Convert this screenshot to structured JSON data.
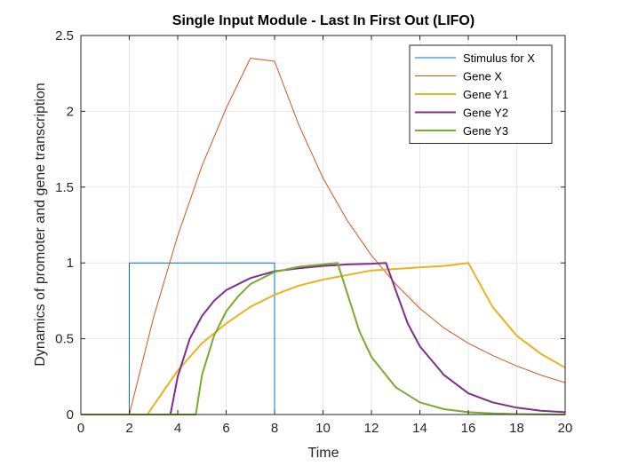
{
  "chart_data": {
    "type": "line",
    "title": "Single Input Module - Last In First Out (LIFO)",
    "xlabel": "Time",
    "ylabel": "Dynamics of promoter and gene transcription",
    "xlim": [
      0,
      20
    ],
    "ylim": [
      0,
      2.5
    ],
    "xticks": [
      0,
      2,
      4,
      6,
      8,
      10,
      12,
      14,
      16,
      18,
      20
    ],
    "yticks": [
      0,
      0.5,
      1,
      1.5,
      2,
      2.5
    ],
    "ytick_labels": [
      "0",
      "0.5",
      "1",
      "1.5",
      "2",
      "2.5"
    ],
    "grid": true,
    "legend_position": "top-right",
    "series": [
      {
        "name": "Stimulus for X",
        "color": "#0072BD",
        "width": 1,
        "x": [
          0,
          2,
          2,
          8,
          8,
          20
        ],
        "y": [
          0,
          0,
          1,
          1,
          0,
          0
        ]
      },
      {
        "name": "Gene X",
        "color": "#D95319",
        "width": 1,
        "x": [
          0,
          2,
          3,
          4,
          5,
          6,
          7,
          8,
          9,
          10,
          11,
          12,
          13,
          14,
          15,
          16,
          17,
          18,
          19,
          20
        ],
        "y": [
          0,
          0,
          0.64,
          1.18,
          1.64,
          2.02,
          2.35,
          2.33,
          1.91,
          1.56,
          1.28,
          1.05,
          0.86,
          0.7,
          0.57,
          0.47,
          0.39,
          0.32,
          0.26,
          0.21
        ]
      },
      {
        "name": "Gene Y1",
        "color": "#EDB120",
        "width": 2,
        "x": [
          0,
          2.75,
          3,
          4,
          5,
          6,
          7,
          8,
          9,
          10,
          11,
          12,
          13,
          14,
          15,
          16,
          17,
          18,
          19,
          20
        ],
        "y": [
          0,
          0,
          0.06,
          0.29,
          0.47,
          0.6,
          0.71,
          0.79,
          0.85,
          0.89,
          0.92,
          0.95,
          0.96,
          0.97,
          0.98,
          1.0,
          0.71,
          0.52,
          0.4,
          0.31
        ]
      },
      {
        "name": "Gene Y2",
        "color": "#7E2F8E",
        "width": 2,
        "x": [
          0,
          3.7,
          4,
          4.5,
          5,
          5.5,
          6,
          7,
          8,
          9,
          10,
          11,
          12,
          12.6,
          13,
          13.5,
          14,
          15,
          16,
          17,
          18,
          19,
          20
        ],
        "y": [
          0,
          0,
          0.25,
          0.5,
          0.65,
          0.75,
          0.82,
          0.9,
          0.945,
          0.965,
          0.98,
          0.99,
          0.995,
          1.0,
          0.82,
          0.6,
          0.45,
          0.26,
          0.14,
          0.08,
          0.045,
          0.025,
          0.015
        ]
      },
      {
        "name": "Gene Y3",
        "color": "#77AC30",
        "width": 2,
        "x": [
          0,
          4.75,
          5,
          5.5,
          6,
          6.5,
          7,
          8,
          9,
          10,
          10.6,
          11,
          11.5,
          12,
          13,
          14,
          15,
          16,
          17,
          18,
          19,
          20
        ],
        "y": [
          0,
          0,
          0.26,
          0.52,
          0.68,
          0.78,
          0.86,
          0.94,
          0.975,
          0.99,
          1.0,
          0.8,
          0.55,
          0.38,
          0.18,
          0.08,
          0.035,
          0.015,
          0.007,
          0.003,
          0.001,
          0
        ]
      }
    ]
  }
}
